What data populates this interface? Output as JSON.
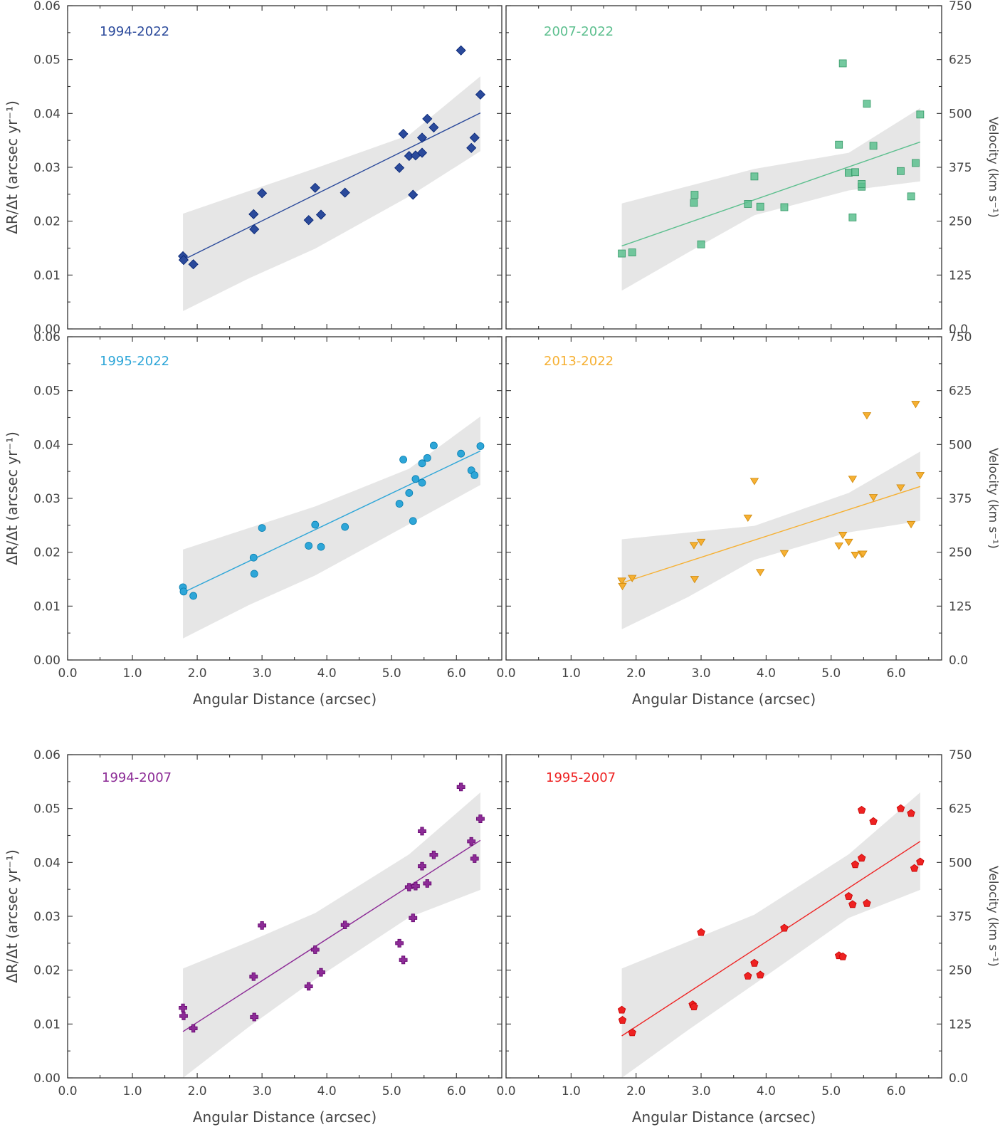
{
  "chart_data": {
    "type": "scatter",
    "xlabel": "Angular Distance (arcsec)",
    "ylabel": "ΔR/Δt (arcsec yr⁻¹)",
    "ylabel_right": "Velocity (km s⁻¹)",
    "xlim": [
      0,
      6.7
    ],
    "ylim": [
      0,
      0.06
    ],
    "ylim_right": [
      0,
      750
    ],
    "xticks": [
      "0.0",
      "1.0",
      "2.0",
      "3.0",
      "4.0",
      "5.0",
      "6.0"
    ],
    "yticks": [
      "0.00",
      "0.01",
      "0.02",
      "0.03",
      "0.04",
      "0.05",
      "0.06"
    ],
    "yticks_right": [
      "0.0",
      "125",
      "250",
      "375",
      "500",
      "625",
      "750"
    ],
    "panels": [
      {
        "label": "1994-2022",
        "color": "#2b4a9b",
        "marker": "diamond",
        "points": [
          [
            1.78,
            0.0135
          ],
          [
            1.79,
            0.0128
          ],
          [
            1.94,
            0.012
          ],
          [
            2.87,
            0.0213
          ],
          [
            2.88,
            0.0185
          ],
          [
            3.0,
            0.0252
          ],
          [
            3.72,
            0.0202
          ],
          [
            3.82,
            0.0262
          ],
          [
            3.91,
            0.0212
          ],
          [
            4.28,
            0.0253
          ],
          [
            5.12,
            0.0299
          ],
          [
            5.18,
            0.0362
          ],
          [
            5.27,
            0.0321
          ],
          [
            5.33,
            0.0249
          ],
          [
            5.37,
            0.0322
          ],
          [
            5.47,
            0.0355
          ],
          [
            5.47,
            0.0327
          ],
          [
            5.55,
            0.039
          ],
          [
            5.65,
            0.0374
          ],
          [
            6.07,
            0.0517
          ],
          [
            6.23,
            0.0336
          ],
          [
            6.28,
            0.0355
          ],
          [
            6.37,
            0.0435
          ]
        ],
        "fit": [
          [
            1.78,
            0.0128
          ],
          [
            6.37,
            0.0401
          ]
        ],
        "band_upper": [
          [
            1.78,
            0.0214
          ],
          [
            3.82,
            0.0298
          ],
          [
            5.27,
            0.036
          ],
          [
            6.37,
            0.0469
          ]
        ],
        "band_lower": [
          [
            1.78,
            0.0033
          ],
          [
            2.8,
            0.0094
          ],
          [
            3.82,
            0.0149
          ],
          [
            5.27,
            0.0246
          ],
          [
            6.37,
            0.033
          ]
        ]
      },
      {
        "label": "2007-2022",
        "color": "#5cbf8e",
        "marker": "square",
        "points": [
          [
            1.78,
            0.014
          ],
          [
            1.94,
            0.0142
          ],
          [
            2.89,
            0.0234
          ],
          [
            2.9,
            0.0249
          ],
          [
            3.0,
            0.0157
          ],
          [
            3.72,
            0.0232
          ],
          [
            3.82,
            0.0283
          ],
          [
            3.91,
            0.0227
          ],
          [
            4.28,
            0.0226
          ],
          [
            5.12,
            0.0342
          ],
          [
            5.18,
            0.0493
          ],
          [
            5.27,
            0.029
          ],
          [
            5.33,
            0.0207
          ],
          [
            5.37,
            0.0291
          ],
          [
            5.47,
            0.0264
          ],
          [
            5.47,
            0.0269
          ],
          [
            5.55,
            0.0418
          ],
          [
            5.65,
            0.034
          ],
          [
            6.07,
            0.0293
          ],
          [
            6.23,
            0.0246
          ],
          [
            6.3,
            0.0308
          ],
          [
            6.37,
            0.0398
          ]
        ],
        "fit": [
          [
            1.78,
            0.0154
          ],
          [
            6.37,
            0.0347
          ]
        ],
        "band_upper": [
          [
            1.78,
            0.0233
          ],
          [
            3.82,
            0.0297
          ],
          [
            5.27,
            0.0327
          ],
          [
            6.37,
            0.041
          ]
        ],
        "band_lower": [
          [
            1.78,
            0.0071
          ],
          [
            2.8,
            0.0142
          ],
          [
            3.82,
            0.0211
          ],
          [
            5.27,
            0.0257
          ],
          [
            6.37,
            0.0274
          ]
        ]
      },
      {
        "label": "1995-2022",
        "color": "#2ea6d8",
        "marker": "circle",
        "points": [
          [
            1.78,
            0.0135
          ],
          [
            1.79,
            0.0127
          ],
          [
            1.94,
            0.0119
          ],
          [
            2.87,
            0.019
          ],
          [
            2.88,
            0.016
          ],
          [
            3.0,
            0.0245
          ],
          [
            3.72,
            0.0212
          ],
          [
            3.82,
            0.0251
          ],
          [
            3.91,
            0.021
          ],
          [
            4.28,
            0.0247
          ],
          [
            5.12,
            0.029
          ],
          [
            5.18,
            0.0372
          ],
          [
            5.27,
            0.031
          ],
          [
            5.33,
            0.0258
          ],
          [
            5.37,
            0.0336
          ],
          [
            5.47,
            0.0329
          ],
          [
            5.47,
            0.0365
          ],
          [
            5.55,
            0.0375
          ],
          [
            5.65,
            0.0398
          ],
          [
            6.07,
            0.0383
          ],
          [
            6.23,
            0.0352
          ],
          [
            6.28,
            0.0343
          ],
          [
            6.37,
            0.0397
          ]
        ],
        "fit": [
          [
            1.78,
            0.0125
          ],
          [
            6.37,
            0.0388
          ]
        ],
        "band_upper": [
          [
            1.78,
            0.0205
          ],
          [
            3.82,
            0.0285
          ],
          [
            5.27,
            0.0355
          ],
          [
            6.37,
            0.0452
          ]
        ],
        "band_lower": [
          [
            1.78,
            0.004
          ],
          [
            2.8,
            0.0102
          ],
          [
            3.82,
            0.0157
          ],
          [
            5.27,
            0.0252
          ],
          [
            6.37,
            0.0325
          ]
        ]
      },
      {
        "label": "2013-2022",
        "color": "#f6b032",
        "marker": "triangle",
        "points": [
          [
            1.78,
            0.0147
          ],
          [
            1.79,
            0.0137
          ],
          [
            1.94,
            0.0152
          ],
          [
            2.89,
            0.0213
          ],
          [
            2.9,
            0.015
          ],
          [
            3.0,
            0.0219
          ],
          [
            3.72,
            0.0264
          ],
          [
            3.82,
            0.0332
          ],
          [
            3.91,
            0.0163
          ],
          [
            4.28,
            0.0198
          ],
          [
            5.12,
            0.0212
          ],
          [
            5.18,
            0.0232
          ],
          [
            5.27,
            0.0219
          ],
          [
            5.33,
            0.0336
          ],
          [
            5.37,
            0.0195
          ],
          [
            5.47,
            0.0197
          ],
          [
            5.49,
            0.0197
          ],
          [
            5.55,
            0.0454
          ],
          [
            5.65,
            0.0302
          ],
          [
            6.07,
            0.032
          ],
          [
            6.23,
            0.0252
          ],
          [
            6.3,
            0.0475
          ],
          [
            6.37,
            0.0343
          ]
        ],
        "fit": [
          [
            1.78,
            0.0143
          ],
          [
            6.37,
            0.0322
          ]
        ],
        "band_upper": [
          [
            1.78,
            0.0224
          ],
          [
            3.82,
            0.0249
          ],
          [
            5.27,
            0.031
          ],
          [
            6.37,
            0.0387
          ]
        ],
        "band_lower": [
          [
            1.78,
            0.0057
          ],
          [
            2.8,
            0.0117
          ],
          [
            3.82,
            0.0186
          ],
          [
            5.27,
            0.0237
          ],
          [
            6.37,
            0.0258
          ]
        ]
      },
      {
        "label": "1994-2007",
        "color": "#8c2b96",
        "marker": "plus",
        "points": [
          [
            1.78,
            0.013
          ],
          [
            1.79,
            0.0115
          ],
          [
            1.94,
            0.0092
          ],
          [
            2.87,
            0.0188
          ],
          [
            2.88,
            0.0113
          ],
          [
            3.0,
            0.0283
          ],
          [
            3.72,
            0.017
          ],
          [
            3.82,
            0.0238
          ],
          [
            3.91,
            0.0196
          ],
          [
            4.28,
            0.0284
          ],
          [
            5.12,
            0.025
          ],
          [
            5.18,
            0.0219
          ],
          [
            5.27,
            0.0354
          ],
          [
            5.33,
            0.0297
          ],
          [
            5.37,
            0.0356
          ],
          [
            5.47,
            0.0393
          ],
          [
            5.47,
            0.0458
          ],
          [
            5.55,
            0.0361
          ],
          [
            5.65,
            0.0414
          ],
          [
            6.07,
            0.054
          ],
          [
            6.23,
            0.0439
          ],
          [
            6.28,
            0.0407
          ],
          [
            6.37,
            0.0481
          ]
        ],
        "fit": [
          [
            1.78,
            0.0086
          ],
          [
            6.37,
            0.0441
          ]
        ],
        "band_upper": [
          [
            1.78,
            0.0203
          ],
          [
            2.8,
            0.0253
          ],
          [
            3.82,
            0.0306
          ],
          [
            5.27,
            0.0415
          ],
          [
            6.37,
            0.053
          ]
        ],
        "band_lower": [
          [
            1.78,
            0.0
          ],
          [
            2.8,
            0.0095
          ],
          [
            3.82,
            0.0183
          ],
          [
            5.27,
            0.0298
          ],
          [
            6.37,
            0.0349
          ]
        ]
      },
      {
        "label": "1995-2007",
        "color": "#ee2222",
        "marker": "pentagon",
        "points": [
          [
            1.78,
            0.0126
          ],
          [
            1.79,
            0.0107
          ],
          [
            1.94,
            0.0084
          ],
          [
            2.87,
            0.0136
          ],
          [
            2.89,
            0.0132
          ],
          [
            3.0,
            0.027
          ],
          [
            3.72,
            0.0189
          ],
          [
            3.82,
            0.0213
          ],
          [
            3.91,
            0.0191
          ],
          [
            4.28,
            0.0278
          ],
          [
            5.12,
            0.0227
          ],
          [
            5.18,
            0.0225
          ],
          [
            5.27,
            0.0337
          ],
          [
            5.33,
            0.0322
          ],
          [
            5.37,
            0.0396
          ],
          [
            5.47,
            0.0408
          ],
          [
            5.47,
            0.0497
          ],
          [
            5.55,
            0.0324
          ],
          [
            5.65,
            0.0476
          ],
          [
            6.07,
            0.05
          ],
          [
            6.23,
            0.0491
          ],
          [
            6.28,
            0.0389
          ],
          [
            6.37,
            0.0401
          ]
        ],
        "fit": [
          [
            1.78,
            0.0078
          ],
          [
            6.37,
            0.0439
          ]
        ],
        "band_upper": [
          [
            1.78,
            0.0203
          ],
          [
            2.8,
            0.0253
          ],
          [
            3.82,
            0.0303
          ],
          [
            5.27,
            0.0415
          ],
          [
            6.37,
            0.053
          ]
        ],
        "band_lower": [
          [
            1.78,
            0.0
          ],
          [
            2.8,
            0.0089
          ],
          [
            3.82,
            0.0174
          ],
          [
            5.27,
            0.0297
          ],
          [
            6.37,
            0.0349
          ]
        ]
      }
    ]
  }
}
